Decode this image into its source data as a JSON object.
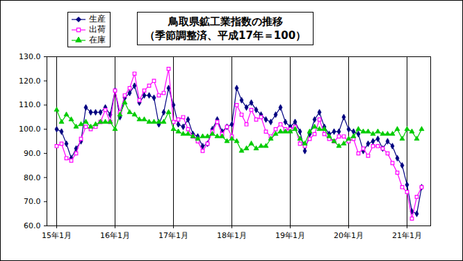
{
  "chart_data": {
    "type": "line",
    "title": "鳥取県鉱工業指数の推移",
    "subtitle": "（季節調整済、平成17年＝100）",
    "categories": [
      "15年1月",
      null,
      null,
      null,
      null,
      null,
      null,
      null,
      null,
      null,
      null,
      null,
      "16年1月",
      null,
      null,
      null,
      null,
      null,
      null,
      null,
      null,
      null,
      null,
      null,
      "17年1月",
      null,
      null,
      null,
      null,
      null,
      null,
      null,
      null,
      null,
      null,
      null,
      "18年1月",
      null,
      null,
      null,
      null,
      null,
      null,
      null,
      null,
      null,
      null,
      null,
      "19年1月",
      null,
      null,
      null,
      null,
      null,
      null,
      null,
      null,
      null,
      null,
      null,
      "20年1月",
      null,
      null,
      null,
      null,
      null,
      null,
      null,
      null,
      null,
      null,
      null,
      "21年1月",
      null,
      null,
      null
    ],
    "series": [
      {
        "name": "生産",
        "color": "#000080",
        "marker": "diamond",
        "values": [
          100,
          99,
          94,
          88,
          92,
          95,
          109,
          107,
          107,
          107,
          109,
          106,
          116,
          105,
          113,
          115,
          118,
          111,
          114,
          114,
          113,
          102,
          107,
          117,
          110,
          102,
          101,
          104,
          98,
          97,
          93,
          94,
          100,
          104,
          99,
          101,
          102,
          117,
          112,
          109,
          111,
          108,
          106,
          104,
          103,
          106,
          109,
          103,
          101,
          103,
          99,
          91,
          98,
          104,
          107,
          101,
          98,
          99,
          99,
          105,
          100,
          99,
          98,
          91,
          94,
          95,
          96,
          92,
          95,
          93,
          88,
          85,
          77,
          66,
          65,
          76
        ]
      },
      {
        "name": "出荷",
        "color": "#ff00ff",
        "marker": "square",
        "values": [
          93,
          94,
          88,
          87,
          90,
          96,
          101,
          100,
          101,
          103,
          108,
          103,
          116,
          107,
          114,
          117,
          123,
          112,
          116,
          118,
          120,
          114,
          115,
          125,
          103,
          104,
          105,
          100,
          97,
          95,
          91,
          94,
          99,
          103,
          98,
          101,
          97,
          110,
          106,
          102,
          108,
          104,
          105,
          99,
          97,
          100,
          102,
          100,
          100,
          101,
          94,
          93,
          96,
          98,
          104,
          98,
          96,
          95,
          97,
          97,
          95,
          96,
          90,
          92,
          89,
          93,
          93,
          92,
          90,
          86,
          82,
          76,
          74,
          63,
          72,
          76
        ]
      },
      {
        "name": "在庫",
        "color": "#00cc00",
        "marker": "triangle",
        "values": [
          108,
          103,
          106,
          104,
          101,
          102,
          103,
          101,
          102,
          103,
          103,
          103,
          100,
          106,
          111,
          107,
          106,
          104,
          104,
          103,
          103,
          103,
          103,
          107,
          100,
          99,
          98,
          98,
          97,
          96,
          97,
          97,
          98,
          97,
          97,
          95,
          96,
          95,
          91,
          92,
          94,
          92,
          93,
          93,
          96,
          98,
          99,
          99,
          99,
          100,
          96,
          94,
          99,
          101,
          100,
          100,
          97,
          95,
          93,
          94,
          96,
          97,
          100,
          99,
          99,
          98,
          99,
          98,
          98,
          98,
          100,
          96,
          100,
          99,
          96,
          100
        ]
      }
    ],
    "ylim": [
      60,
      130
    ],
    "yticks": [
      {
        "value": 60,
        "label": "60.0"
      },
      {
        "value": 70,
        "label": "70.0"
      },
      {
        "value": 80,
        "label": "80.0"
      },
      {
        "value": 90,
        "label": "90.0"
      },
      {
        "value": 100,
        "label": "100.0"
      },
      {
        "value": 110,
        "label": "110.0"
      },
      {
        "value": 120,
        "label": "120.0"
      },
      {
        "value": 130,
        "label": "130.0"
      }
    ],
    "grid": "x",
    "legend": "top-left"
  }
}
